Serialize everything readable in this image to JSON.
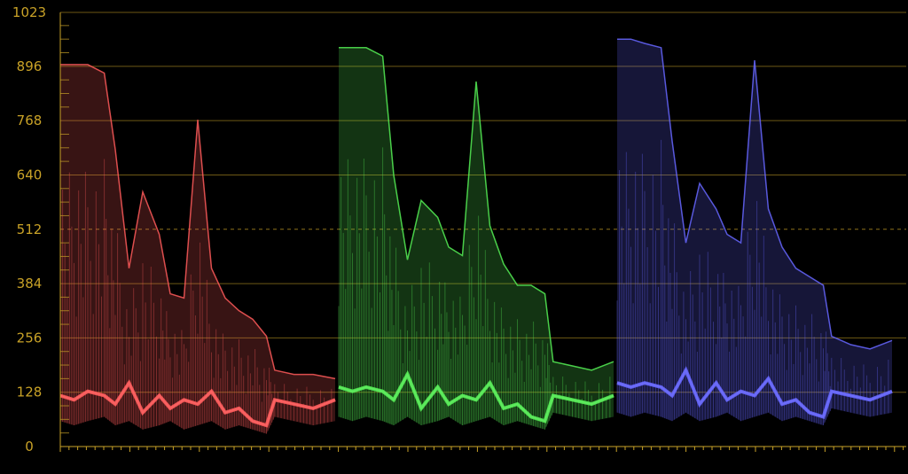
{
  "chart_data": {
    "type": "waveform-parade",
    "ylim": [
      0,
      1023
    ],
    "y_ticks": [
      0,
      128,
      256,
      384,
      512,
      640,
      768,
      896,
      1023
    ],
    "y_tick_labels": [
      "0",
      "128",
      "256",
      "384",
      "512",
      "640",
      "768",
      "896",
      "1023"
    ],
    "dashed_reference": 512,
    "grid": true,
    "series": [
      {
        "color": "#ff5a5a",
        "x": [
          0.0,
          0.05,
          0.1,
          0.16,
          0.2,
          0.25,
          0.3,
          0.36,
          0.4,
          0.45,
          0.5,
          0.55,
          0.6,
          0.65,
          0.7,
          0.75,
          0.78,
          0.85,
          0.92,
          1.0
        ],
        "y_upper": [
          900,
          900,
          900,
          880,
          700,
          420,
          600,
          500,
          360,
          350,
          770,
          420,
          350,
          320,
          300,
          260,
          180,
          170,
          170,
          160
        ],
        "y_lower": [
          60,
          50,
          60,
          70,
          50,
          60,
          40,
          50,
          60,
          40,
          50,
          60,
          40,
          50,
          40,
          30,
          70,
          60,
          50,
          60
        ],
        "y_bright": [
          120,
          110,
          130,
          120,
          100,
          150,
          80,
          120,
          90,
          110,
          100,
          130,
          80,
          90,
          60,
          50,
          110,
          100,
          90,
          110
        ]
      },
      {
        "color": "#55ee55",
        "x": [
          0.0,
          0.05,
          0.1,
          0.16,
          0.2,
          0.25,
          0.3,
          0.36,
          0.4,
          0.45,
          0.5,
          0.55,
          0.6,
          0.65,
          0.7,
          0.75,
          0.78,
          0.85,
          0.92,
          1.0
        ],
        "y_upper": [
          940,
          940,
          940,
          920,
          640,
          440,
          580,
          540,
          470,
          450,
          860,
          520,
          430,
          380,
          380,
          360,
          200,
          190,
          180,
          200
        ],
        "y_lower": [
          70,
          60,
          70,
          60,
          50,
          70,
          50,
          60,
          70,
          50,
          60,
          70,
          50,
          60,
          50,
          40,
          80,
          70,
          60,
          70
        ],
        "y_bright": [
          140,
          130,
          140,
          130,
          110,
          170,
          90,
          140,
          100,
          120,
          110,
          150,
          90,
          100,
          70,
          60,
          120,
          110,
          100,
          120
        ]
      },
      {
        "color": "#6666ff",
        "x": [
          0.0,
          0.05,
          0.1,
          0.16,
          0.2,
          0.25,
          0.3,
          0.36,
          0.4,
          0.45,
          0.5,
          0.55,
          0.6,
          0.65,
          0.7,
          0.75,
          0.78,
          0.85,
          0.92,
          1.0
        ],
        "y_upper": [
          960,
          960,
          950,
          940,
          720,
          480,
          620,
          560,
          500,
          480,
          910,
          560,
          470,
          420,
          400,
          380,
          260,
          240,
          230,
          250
        ],
        "y_lower": [
          80,
          70,
          80,
          70,
          60,
          80,
          60,
          70,
          80,
          60,
          70,
          80,
          60,
          70,
          60,
          50,
          90,
          80,
          70,
          80
        ],
        "y_bright": [
          150,
          140,
          150,
          140,
          120,
          180,
          100,
          150,
          110,
          130,
          120,
          160,
          100,
          110,
          80,
          70,
          130,
          120,
          110,
          130
        ]
      }
    ]
  }
}
